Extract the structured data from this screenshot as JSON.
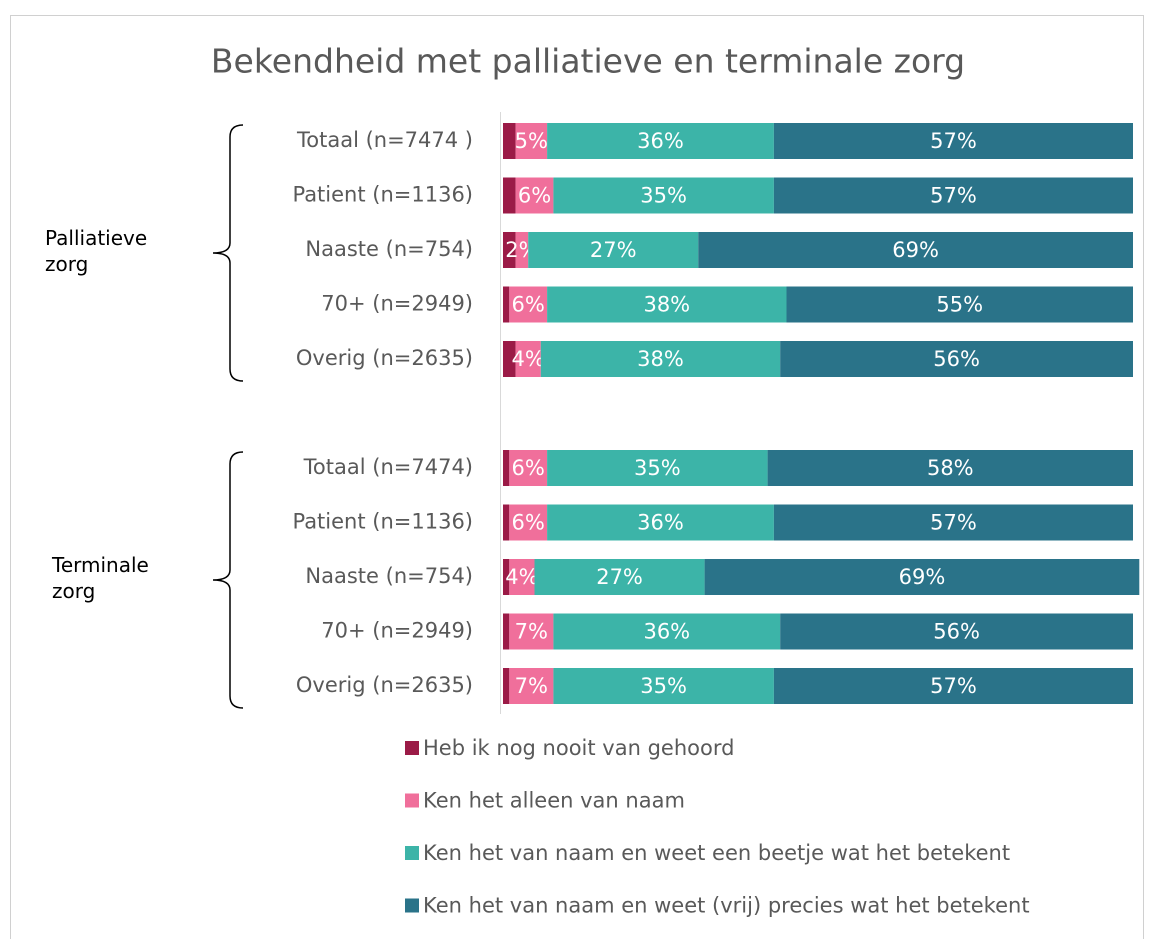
{
  "chart_data": {
    "type": "stacked_barh",
    "title": "Bekendheid met palliatieve en terminale zorg",
    "categories": [
      "Totaal (n=7474 )",
      "Patient  (n=1136)",
      "Naaste  (n=754)",
      "70+  (n=2949)",
      "Overig  (n=2635)",
      null,
      "Totaal (n=7474)",
      "Patient (n=1136)",
      "Naaste (n=754)",
      "70+ (n=2949)",
      "Overig (n=2635)"
    ],
    "groups": [
      "Palliatieve zorg",
      "Terminale zorg"
    ],
    "xlim": [
      0,
      100
    ],
    "legend": "bottom",
    "series": [
      {
        "name": "Heb ik nog nooit van gehoord",
        "color": "#9b1b47",
        "values": [
          2,
          2,
          2,
          1,
          2,
          null,
          1,
          1,
          1,
          1,
          1
        ]
      },
      {
        "name": "Ken het alleen van naam",
        "color": "#f06f9b",
        "values": [
          5,
          6,
          2,
          6,
          4,
          null,
          6,
          6,
          4,
          7,
          7
        ],
        "value_labels": [
          "5%",
          "6%",
          "2%",
          "6%",
          "4%",
          null,
          "6%",
          "6%",
          "4%",
          "7%",
          "7%"
        ]
      },
      {
        "name": "Ken het van naam en weet een beetje wat het betekent",
        "color": "#3cb4a8",
        "values": [
          36,
          35,
          27,
          38,
          38,
          null,
          35,
          36,
          27,
          36,
          35
        ],
        "value_labels": [
          "36%",
          "35%",
          "27%",
          "38%",
          "38%",
          null,
          "35%",
          "36%",
          "27%",
          "36%",
          "35%"
        ]
      },
      {
        "name": "Ken het van naam en weet (vrij) precies wat het betekent",
        "color": "#2a7389",
        "values": [
          57,
          57,
          69,
          55,
          56,
          null,
          58,
          57,
          69,
          56,
          57
        ],
        "value_labels": [
          "57%",
          "57%",
          "69%",
          "55%",
          "56%",
          null,
          "58%",
          "57%",
          "69%",
          "56%",
          "57%"
        ]
      }
    ]
  }
}
